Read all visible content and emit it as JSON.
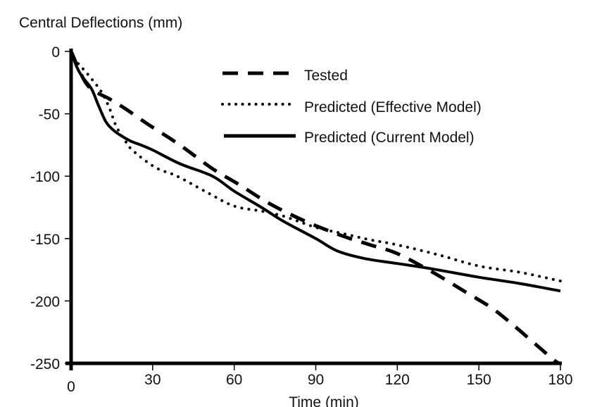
{
  "chart_data": {
    "type": "line",
    "title": "",
    "ylabel": "Central Deflections (mm)",
    "xlabel": "Time (min)",
    "xlim": [
      0,
      180
    ],
    "ylim": [
      -250,
      0
    ],
    "xticks": [
      0,
      30,
      60,
      90,
      120,
      150,
      180
    ],
    "yticks": [
      0,
      -50,
      -100,
      -150,
      -200,
      -250
    ],
    "xtick_labels": [
      "0",
      "30",
      "60",
      "90",
      "120",
      "150",
      "180"
    ],
    "ytick_labels": [
      "0",
      "-50",
      "-100",
      "-150",
      "-200",
      "-250"
    ],
    "grid": false,
    "legend_position": "top-right",
    "series": [
      {
        "name": "Tested",
        "style": "dashed",
        "x": [
          0,
          6,
          14,
          20,
          28,
          40,
          52,
          62,
          73,
          86,
          100,
          110,
          120,
          133,
          146,
          155,
          163,
          171,
          178,
          180
        ],
        "y": [
          0,
          -27,
          -38,
          -46,
          -58,
          -75,
          -94,
          -107,
          -122,
          -136,
          -148,
          -155,
          -162,
          -177,
          -194,
          -206,
          -220,
          -235,
          -248,
          -250
        ]
      },
      {
        "name": "Predicted (Effective Model)",
        "style": "dotted",
        "x": [
          0,
          2,
          6,
          11,
          14,
          16.6,
          20,
          23,
          31,
          39,
          50,
          60,
          70,
          78,
          90,
          100,
          110,
          120,
          135,
          150,
          165,
          180
        ],
        "y": [
          0,
          -8,
          -18,
          -32,
          -45,
          -60,
          -72,
          -80,
          -93,
          -100,
          -113,
          -124,
          -128,
          -132,
          -141,
          -146,
          -151,
          -155,
          -163,
          -172,
          -177,
          -184
        ]
      },
      {
        "name": "Predicted (Current Model)",
        "style": "solid",
        "x": [
          0,
          2,
          4,
          7.5,
          10,
          12.7,
          15,
          18,
          22,
          25.7,
          30,
          40,
          52,
          60,
          70,
          78,
          90,
          98,
          108,
          120,
          132,
          150,
          165,
          180
        ],
        "y": [
          0,
          -12,
          -20,
          -30,
          -43,
          -56,
          -62,
          -67,
          -72,
          -75,
          -79,
          -90,
          -100,
          -112,
          -125,
          -136,
          -150,
          -160,
          -166,
          -170,
          -174,
          -181,
          -186,
          -192
        ]
      }
    ]
  }
}
